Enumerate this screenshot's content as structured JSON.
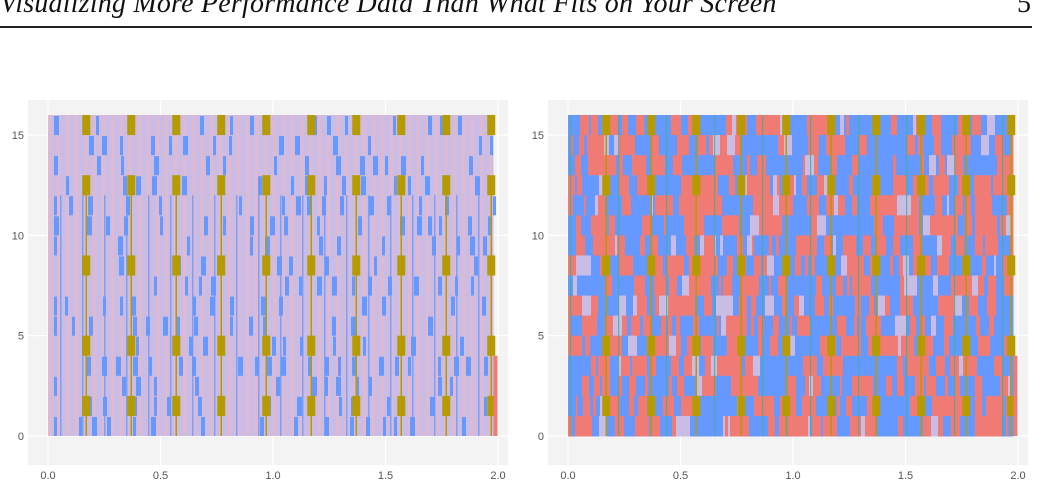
{
  "header": {
    "running_title": "Visualizing More Performance Data Than What Fits on Your Screen",
    "page_number": "5"
  },
  "colors": {
    "state_blue": "#6699ff",
    "state_red": "#f07a74",
    "state_olive": "#b59b00",
    "state_green": "#3fb38a",
    "blend_lavender": "#c9bde6",
    "blend_pink": "#eab8c8",
    "panel_bg": "#f3f3f3",
    "grid": "#ffffff"
  },
  "chart_data": [
    {
      "type": "heatmap",
      "title": "",
      "xlabel": "",
      "ylabel": "",
      "xlim": [
        0,
        2.0
      ],
      "ylim": [
        0,
        16
      ],
      "x_ticks": [
        "0.0",
        "0.5",
        "1.0",
        "1.5",
        "2.0"
      ],
      "y_ticks": [
        "0",
        "5",
        "10",
        "15"
      ],
      "y_tick_values": [
        0,
        5,
        10,
        15
      ],
      "x_tick_values": [
        0.0,
        0.5,
        1.0,
        1.5,
        2.0
      ],
      "rows": 16,
      "x_end": 1.98,
      "pattern": "aggregated",
      "olive_columns": [
        0.17,
        0.37,
        0.57,
        0.77,
        0.97,
        1.17,
        1.37,
        1.57,
        1.77,
        1.97
      ]
    },
    {
      "type": "heatmap",
      "title": "",
      "xlabel": "",
      "ylabel": "",
      "xlim": [
        0,
        2.0
      ],
      "ylim": [
        0,
        16
      ],
      "x_ticks": [
        "0.0",
        "0.5",
        "1.0",
        "1.5",
        "2.0"
      ],
      "y_ticks": [
        "0",
        "5",
        "10",
        "15"
      ],
      "y_tick_values": [
        0,
        5,
        10,
        15
      ],
      "x_tick_values": [
        0.0,
        0.5,
        1.0,
        1.5,
        2.0
      ],
      "rows": 16,
      "x_end": 1.98,
      "pattern": "detailed",
      "olive_columns": [
        0.17,
        0.37,
        0.57,
        0.77,
        0.97,
        1.17,
        1.37,
        1.57,
        1.77,
        1.97
      ]
    }
  ]
}
